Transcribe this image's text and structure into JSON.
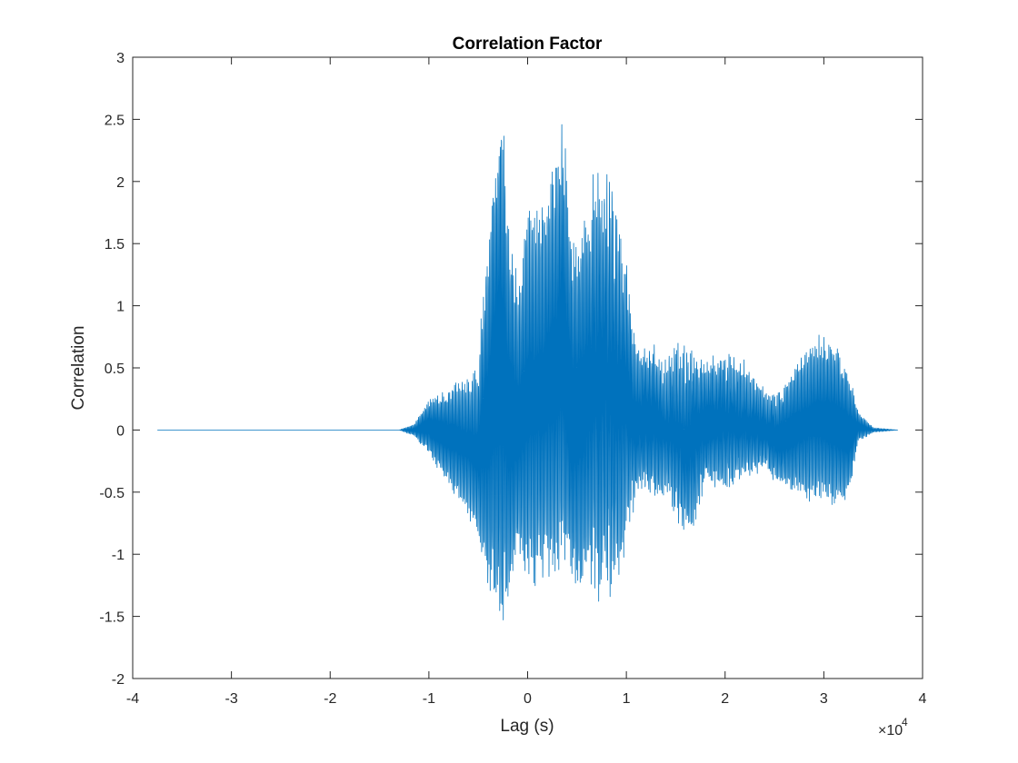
{
  "chart_data": {
    "type": "line",
    "title": "Correlation Factor",
    "xlabel": "Lag (s)",
    "ylabel": "Correlation",
    "x_exponent_base": "×10",
    "x_exponent_power": "4",
    "xlim": [
      -4,
      4
    ],
    "ylim": [
      -2,
      3
    ],
    "xticks": [
      -4,
      -3,
      -2,
      -1,
      0,
      1,
      2,
      3,
      4
    ],
    "xtick_labels": [
      "-4",
      "-3",
      "-2",
      "-1",
      "0",
      "1",
      "2",
      "3",
      "4"
    ],
    "yticks": [
      -2,
      -1.5,
      -1,
      -0.5,
      0,
      0.5,
      1,
      1.5,
      2,
      2.5,
      3
    ],
    "ytick_labels": [
      "-2",
      "-1.5",
      "-1",
      "-0.5",
      "0",
      "0.5",
      "1",
      "1.5",
      "2",
      "2.5",
      "3"
    ],
    "grid": false,
    "line_color": "#0072BD",
    "series": [
      {
        "x_range": [
          -3.75,
          3.75
        ],
        "envelope": [
          {
            "x": -3.75,
            "upper": 0.0,
            "lower": 0.0
          },
          {
            "x": -1.3,
            "upper": 0.0,
            "lower": 0.0
          },
          {
            "x": -1.15,
            "upper": 0.05,
            "lower": -0.05
          },
          {
            "x": -1.0,
            "upper": 0.25,
            "lower": -0.2
          },
          {
            "x": -0.8,
            "upper": 0.35,
            "lower": -0.45
          },
          {
            "x": -0.6,
            "upper": 0.45,
            "lower": -0.7
          },
          {
            "x": -0.5,
            "upper": 0.5,
            "lower": -0.9
          },
          {
            "x": -0.48,
            "upper": 0.9,
            "lower": -1.1
          },
          {
            "x": -0.4,
            "upper": 1.5,
            "lower": -1.3
          },
          {
            "x": -0.33,
            "upper": 2.3,
            "lower": -1.45
          },
          {
            "x": -0.28,
            "upper": 2.6,
            "lower": -1.55
          },
          {
            "x": -0.24,
            "upper": 2.45,
            "lower": -1.6
          },
          {
            "x": -0.2,
            "upper": 1.8,
            "lower": -1.5
          },
          {
            "x": -0.1,
            "upper": 1.2,
            "lower": -1.1
          },
          {
            "x": 0.0,
            "upper": 1.8,
            "lower": -1.3
          },
          {
            "x": 0.15,
            "upper": 1.9,
            "lower": -1.25
          },
          {
            "x": 0.3,
            "upper": 2.2,
            "lower": -1.2
          },
          {
            "x": 0.35,
            "upper": 2.65,
            "lower": -1.1
          },
          {
            "x": 0.45,
            "upper": 1.5,
            "lower": -1.3
          },
          {
            "x": 0.55,
            "upper": 1.7,
            "lower": -1.3
          },
          {
            "x": 0.7,
            "upper": 2.1,
            "lower": -1.3
          },
          {
            "x": 0.8,
            "upper": 2.05,
            "lower": -1.3
          },
          {
            "x": 0.9,
            "upper": 1.8,
            "lower": -1.3
          },
          {
            "x": 1.0,
            "upper": 1.3,
            "lower": -0.8
          },
          {
            "x": 1.1,
            "upper": 0.65,
            "lower": -0.55
          },
          {
            "x": 1.2,
            "upper": 0.7,
            "lower": -0.5
          },
          {
            "x": 1.4,
            "upper": 0.55,
            "lower": -0.5
          },
          {
            "x": 1.5,
            "upper": 0.65,
            "lower": -0.7
          },
          {
            "x": 1.6,
            "upper": 0.65,
            "lower": -0.9
          },
          {
            "x": 1.8,
            "upper": 0.55,
            "lower": -0.45
          },
          {
            "x": 2.0,
            "upper": 0.6,
            "lower": -0.45
          },
          {
            "x": 2.2,
            "upper": 0.5,
            "lower": -0.4
          },
          {
            "x": 2.4,
            "upper": 0.3,
            "lower": -0.3
          },
          {
            "x": 2.55,
            "upper": 0.3,
            "lower": -0.45
          },
          {
            "x": 2.75,
            "upper": 0.6,
            "lower": -0.55
          },
          {
            "x": 2.95,
            "upper": 0.78,
            "lower": -0.6
          },
          {
            "x": 3.1,
            "upper": 0.72,
            "lower": -0.62
          },
          {
            "x": 3.25,
            "upper": 0.5,
            "lower": -0.55
          },
          {
            "x": 3.35,
            "upper": 0.15,
            "lower": -0.1
          },
          {
            "x": 3.5,
            "upper": 0.02,
            "lower": -0.02
          },
          {
            "x": 3.75,
            "upper": 0.0,
            "lower": 0.0
          }
        ]
      }
    ]
  }
}
